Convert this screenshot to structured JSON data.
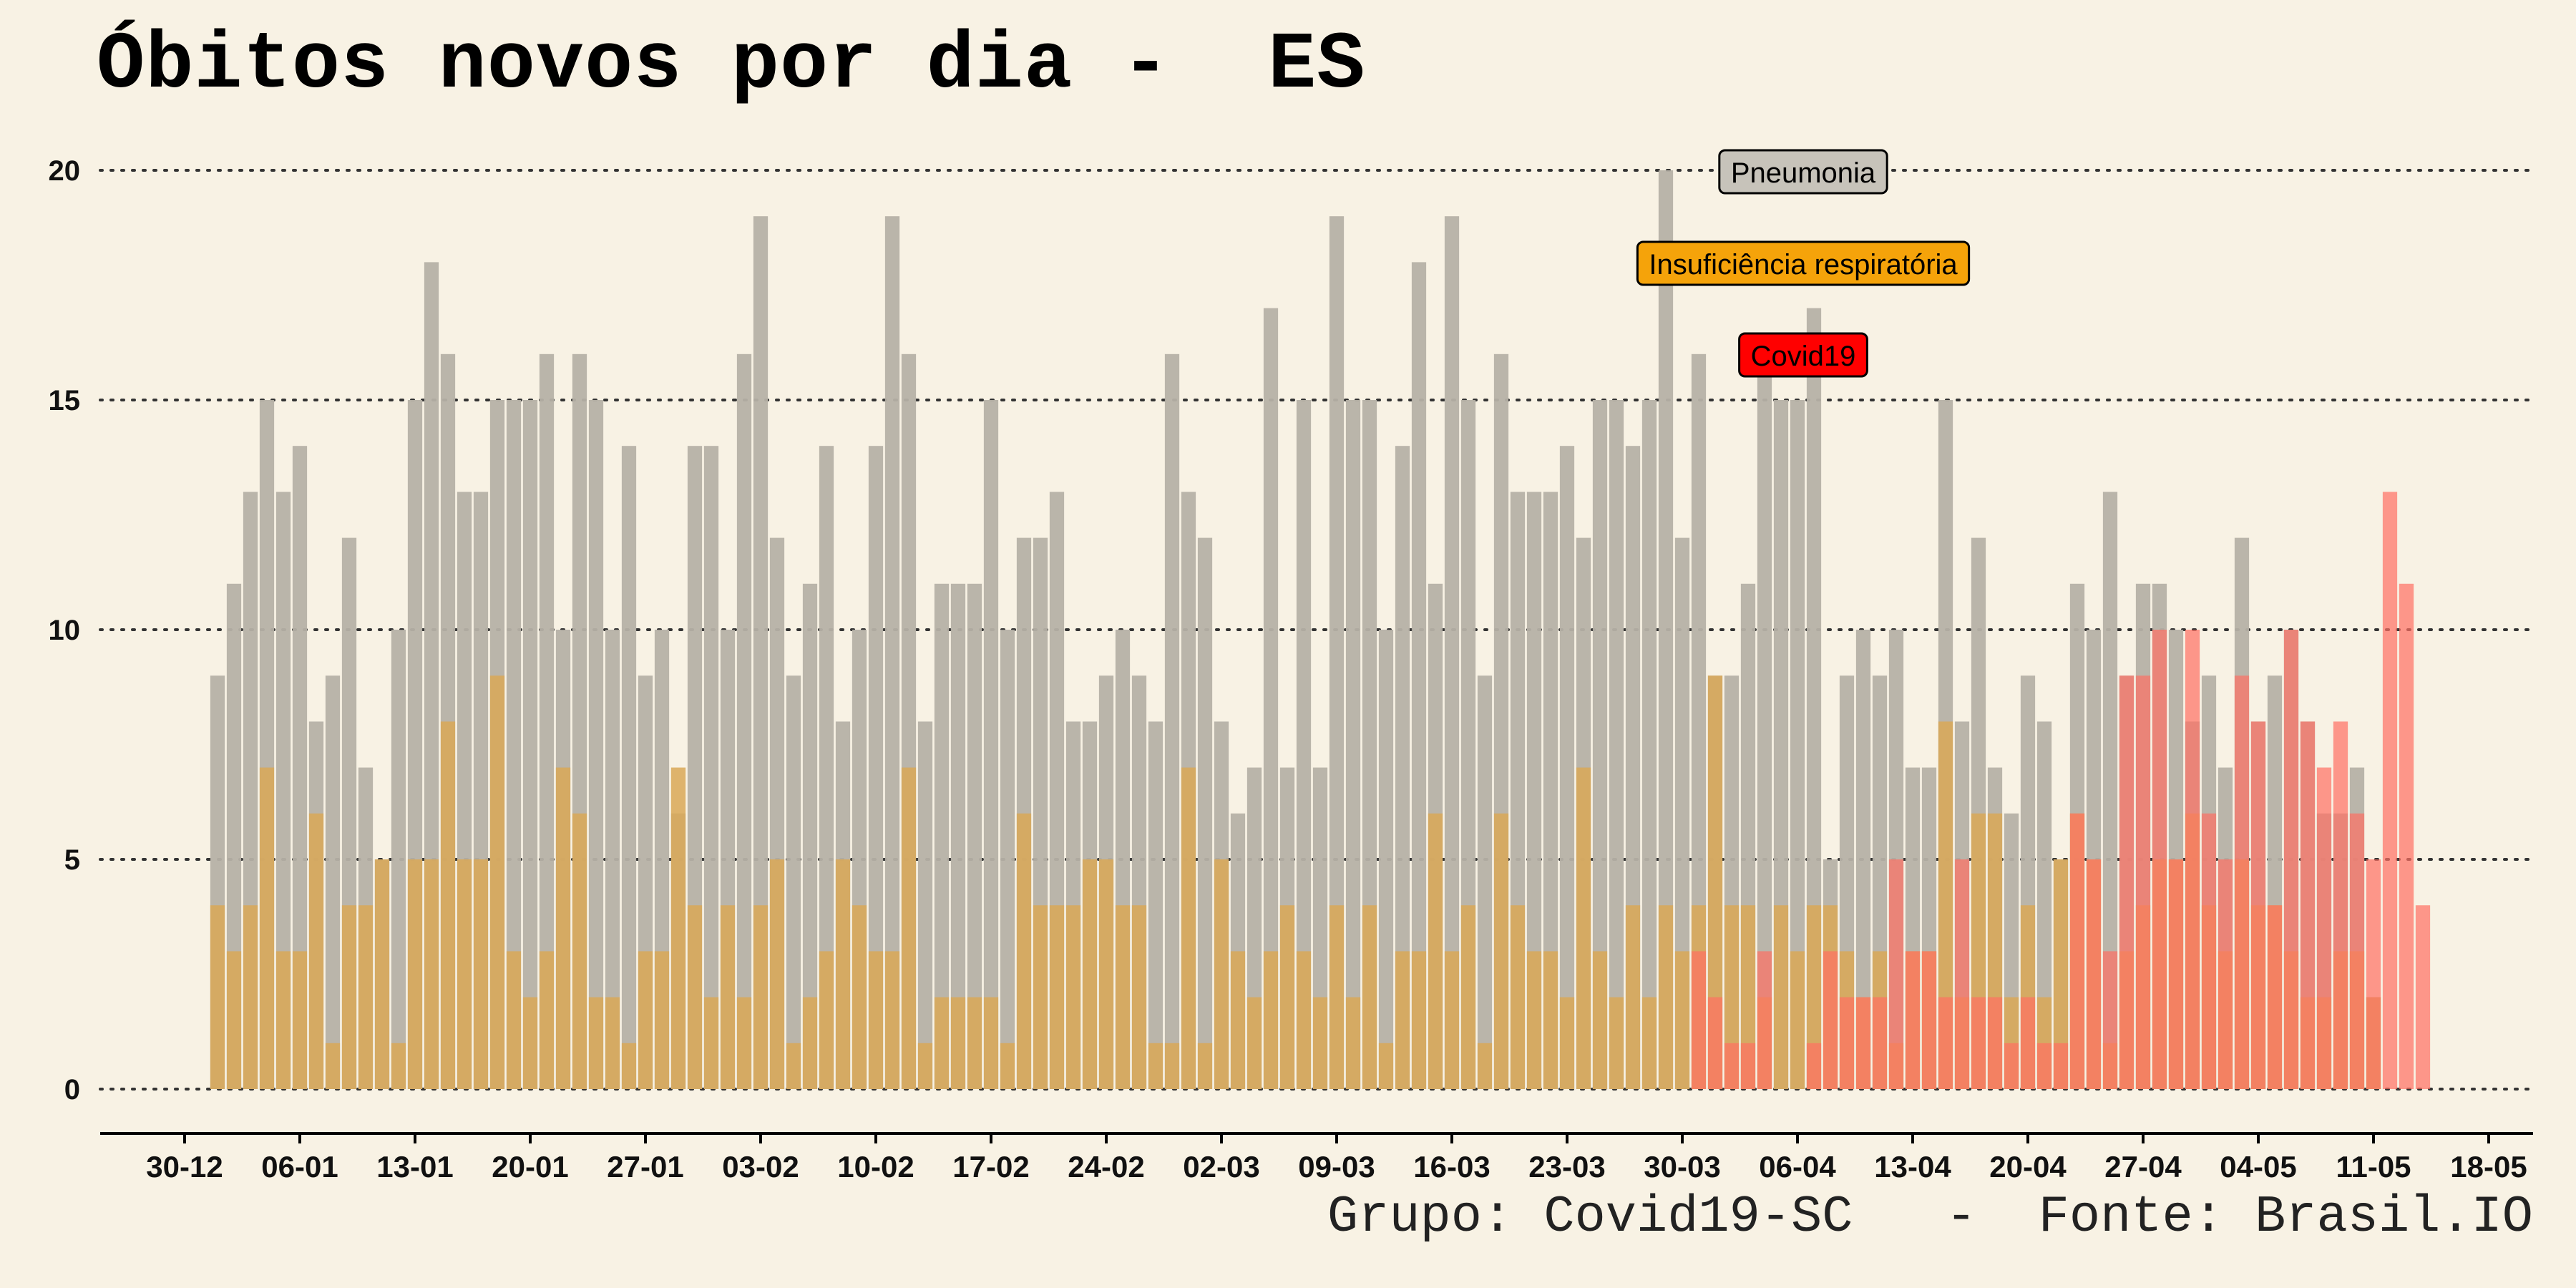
{
  "title": "Óbitos novos por dia -  ES",
  "caption": "Grupo: Covid19-SC   -  Fonte: Brasil.IO",
  "colors": {
    "background": "#f8f2e4",
    "pneumonia": "#b6b1a6",
    "insuficiencia": "#d9a857",
    "insuficiencia_light": "#f6d28e",
    "covid": "#ff6f63",
    "overlap_gray_red": "#d97273",
    "overlap_orange_red": "#e36e3f",
    "grid": "#333333",
    "legend_pneumonia": "#c7c3ba",
    "legend_insuficiencia": "#f5a30a",
    "legend_covid": "#ff0000"
  },
  "chart_data": {
    "type": "bar",
    "title": "Óbitos novos por dia -  ES",
    "ylim": [
      0,
      20
    ],
    "y_ticks": [
      0,
      5,
      10,
      15,
      20
    ],
    "x_tick_labels": [
      "30-12",
      "06-01",
      "13-01",
      "20-01",
      "27-01",
      "03-02",
      "10-02",
      "17-02",
      "24-02",
      "02-03",
      "09-03",
      "16-03",
      "23-03",
      "30-03",
      "06-04",
      "13-04",
      "20-04",
      "27-04",
      "04-05",
      "11-05",
      "18-05"
    ],
    "grid": "horizontal dotted",
    "legend": [
      "Pneumonia",
      "Insuficiência respiratória",
      "Covid19"
    ],
    "legend_placement": "top-center",
    "series": [
      {
        "name": "Pneumonia",
        "start": "01-01",
        "values": [
          9,
          11,
          13,
          15,
          13,
          14,
          8,
          9,
          12,
          7,
          5,
          10,
          15,
          18,
          16,
          13,
          13,
          15,
          15,
          15,
          16,
          10,
          16,
          15,
          10,
          14,
          9,
          10,
          6,
          14,
          14,
          10,
          16,
          19,
          12,
          9,
          11,
          14,
          8,
          10,
          14,
          19,
          16,
          8,
          11,
          11,
          11,
          15,
          10,
          12,
          12,
          13,
          8,
          8,
          9,
          10,
          9,
          8,
          16,
          13,
          12,
          8,
          6,
          7,
          17,
          7,
          15,
          7,
          19,
          15,
          15,
          10,
          14,
          18,
          11,
          19,
          15,
          9,
          16,
          13,
          13,
          13,
          14,
          12,
          15,
          15,
          14,
          15,
          20,
          12,
          16,
          9,
          9,
          11,
          16,
          15,
          15,
          17,
          5,
          9,
          10,
          9,
          10,
          7,
          7,
          15,
          8,
          12,
          7,
          6,
          9,
          8,
          5,
          11,
          10,
          13,
          9,
          11,
          11,
          10,
          8,
          9,
          7,
          12,
          8,
          9,
          10,
          8,
          6,
          6,
          7,
          2
        ]
      },
      {
        "name": "Insuficiência respiratória",
        "start": "01-01",
        "values": [
          4,
          3,
          4,
          7,
          3,
          3,
          6,
          1,
          4,
          4,
          5,
          1,
          5,
          5,
          8,
          5,
          5,
          9,
          3,
          2,
          3,
          7,
          6,
          2,
          2,
          1,
          3,
          3,
          7,
          4,
          2,
          4,
          2,
          4,
          5,
          1,
          2,
          3,
          5,
          4,
          3,
          3,
          7,
          1,
          2,
          2,
          2,
          2,
          1,
          6,
          4,
          4,
          4,
          5,
          5,
          4,
          4,
          1,
          1,
          7,
          1,
          5,
          3,
          2,
          3,
          4,
          3,
          2,
          4,
          2,
          4,
          1,
          3,
          3,
          6,
          3,
          4,
          1,
          6,
          4,
          3,
          3,
          2,
          7,
          3,
          2,
          4,
          2,
          4,
          3,
          4,
          9,
          4,
          4,
          2,
          4,
          3,
          4,
          4,
          3,
          2,
          3,
          1,
          3,
          3,
          8,
          2,
          6,
          6,
          2,
          4,
          2,
          5,
          6,
          5,
          1,
          3,
          4,
          5,
          5,
          6,
          4,
          3,
          5,
          4,
          4,
          3,
          2,
          2,
          3,
          3,
          2
        ]
      },
      {
        "name": "Covid19",
        "start": "31-03",
        "values": [
          3,
          2,
          1,
          1,
          3,
          0,
          0,
          1,
          3,
          2,
          2,
          2,
          5,
          3,
          3,
          2,
          5,
          2,
          2,
          1,
          2,
          1,
          1,
          6,
          5,
          3,
          9,
          9,
          10,
          5,
          10,
          6,
          5,
          9,
          8,
          4,
          10,
          8,
          7,
          8,
          6,
          5,
          13,
          11,
          4
        ]
      }
    ]
  }
}
